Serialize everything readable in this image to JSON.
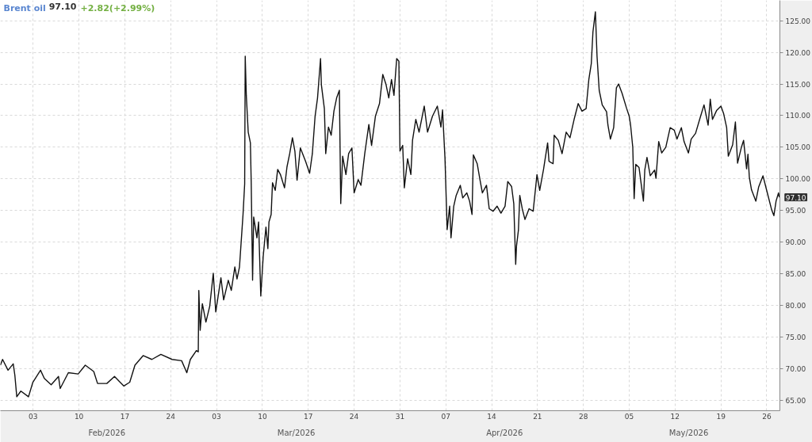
{
  "chart_data": {
    "type": "line",
    "title": "Brent oil",
    "annotations": [
      "97.10",
      "+2.82(+2.99%)",
      {
        "text": "97.10",
        "x": "2026-05-27T22:00",
        "y": 97.1
      }
    ],
    "xlim": [
      "2026-01-29T00:00",
      "2026-05-28T00:00"
    ],
    "xticks": [
      {
        "value": "2026-02-03",
        "label": "03"
      },
      {
        "value": "2026-02-10",
        "label": "10"
      },
      {
        "value": "2026-02-17",
        "label": "17"
      },
      {
        "value": "2026-02-24",
        "label": "24"
      },
      {
        "value": "2026-03-03",
        "label": "03"
      },
      {
        "value": "2026-03-10",
        "label": "10"
      },
      {
        "value": "2026-03-17",
        "label": "17"
      },
      {
        "value": "2026-03-24",
        "label": "24"
      },
      {
        "value": "2026-03-31",
        "label": "31"
      },
      {
        "value": "2026-04-07",
        "label": "07"
      },
      {
        "value": "2026-04-14",
        "label": "14"
      },
      {
        "value": "2026-04-21",
        "label": "21"
      },
      {
        "value": "2026-04-28",
        "label": "28"
      },
      {
        "value": "2026-05-05",
        "label": "05"
      },
      {
        "value": "2026-05-12",
        "label": "12"
      },
      {
        "value": "2026-05-19",
        "label": "19"
      },
      {
        "value": "2026-05-26",
        "label": "26"
      }
    ],
    "x2lim": [
      "2026-01-29T00:00",
      "2026-05-28T00:00"
    ],
    "x2ticks": [
      {
        "value": "2026-02-14T06:00",
        "label": "Feb/2026"
      },
      {
        "value": "2026-03-15T04:00",
        "label": "Mar/2026"
      },
      {
        "value": "2026-04-15T23:00",
        "label": "Apr/2026"
      },
      {
        "value": "2026-05-14T02:00",
        "label": "May/2026"
      }
    ],
    "ylim": [
      63.4,
      128.2
    ],
    "yticks": [
      {
        "value": 65,
        "label": "65.00"
      },
      {
        "value": 70,
        "label": "70.00"
      },
      {
        "value": 75,
        "label": "75.00"
      },
      {
        "value": 80,
        "label": "80.00"
      },
      {
        "value": 85,
        "label": "85.00"
      },
      {
        "value": 90,
        "label": "90.00"
      },
      {
        "value": 95,
        "label": "95.00"
      },
      {
        "value": 100,
        "label": "100.00"
      },
      {
        "value": 105,
        "label": "105.00"
      },
      {
        "value": 110,
        "label": "110.00"
      },
      {
        "value": 115,
        "label": "115.00"
      },
      {
        "value": 120,
        "label": "120.00"
      },
      {
        "value": 125,
        "label": "125.00"
      }
    ],
    "grid": true,
    "x": [
      "2026-01-29T00:00",
      "2026-01-29T08:00",
      "2026-01-30T04:00",
      "2026-01-30T23:00",
      "2026-01-31T05:00",
      "2026-01-31T12:00",
      "2026-02-01T03:00",
      "2026-02-02T07:00",
      "2026-02-02T23:00",
      "2026-02-04T03:00",
      "2026-02-04T17:00",
      "2026-02-05T18:00",
      "2026-02-06T21:00",
      "2026-02-07T03:00",
      "2026-02-08T09:00",
      "2026-02-09T21:00",
      "2026-02-10T23:00",
      "2026-02-12T06:00",
      "2026-02-12T20:00",
      "2026-02-14T06:00",
      "2026-02-15T10:00",
      "2026-02-16T20:00",
      "2026-02-17T18:00",
      "2026-02-18T13:00",
      "2026-02-19T19:00",
      "2026-02-21T03:00",
      "2026-02-22T12:00",
      "2026-02-24T05:00",
      "2026-02-25T16:00",
      "2026-02-26T11:00",
      "2026-02-27T00:00",
      "2026-02-27T22:00",
      "2026-02-28T05:00",
      "2026-02-28T07:00",
      "2026-02-28T12:00",
      "2026-02-28T20:00",
      "2026-03-01T09:00",
      "2026-03-01T23:00",
      "2026-03-02T12:00",
      "2026-03-02T21:00",
      "2026-03-03T16:00",
      "2026-03-04T02:00",
      "2026-03-04T19:00",
      "2026-03-05T06:00",
      "2026-03-05T19:00",
      "2026-03-06T03:00",
      "2026-03-06T12:00",
      "2026-03-07T01:00",
      "2026-03-07T07:00",
      "2026-03-07T09:00",
      "2026-03-07T13:00",
      "2026-03-07T20:00",
      "2026-03-08T04:00",
      "2026-03-08T07:00",
      "2026-03-08T12:00",
      "2026-03-08T16:00",
      "2026-03-09T04:00",
      "2026-03-09T10:00",
      "2026-03-09T18:00",
      "2026-03-10T03:00",
      "2026-03-10T13:00",
      "2026-03-10T20:00",
      "2026-03-11T00:00",
      "2026-03-11T08:00",
      "2026-03-11T13:00",
      "2026-03-11T23:00",
      "2026-03-12T08:00",
      "2026-03-12T18:00",
      "2026-03-13T09:00",
      "2026-03-13T18:00",
      "2026-03-14T04:00",
      "2026-03-14T14:00",
      "2026-03-14T23:00",
      "2026-03-15T07:00",
      "2026-03-15T19:00",
      "2026-03-16T14:00",
      "2026-03-17T05:00",
      "2026-03-17T15:00",
      "2026-03-18T01:00",
      "2026-03-18T10:00",
      "2026-03-18T21:00",
      "2026-03-19T00:00",
      "2026-03-19T11:00",
      "2026-03-19T16:00",
      "2026-03-20T02:00",
      "2026-03-20T12:00",
      "2026-03-20T22:00",
      "2026-03-21T08:00",
      "2026-03-21T18:00",
      "2026-03-21T23:00",
      "2026-03-22T06:00",
      "2026-03-22T18:00",
      "2026-03-23T04:00",
      "2026-03-23T16:00",
      "2026-03-24T00:00",
      "2026-03-24T15:00",
      "2026-03-25T01:00",
      "2026-03-25T15:00",
      "2026-03-26T06:00",
      "2026-03-26T16:00",
      "2026-03-27T06:00",
      "2026-03-27T21:00",
      "2026-03-28T09:00",
      "2026-03-28T21:00",
      "2026-03-29T07:00",
      "2026-03-29T17:00",
      "2026-03-30T02:00",
      "2026-03-30T12:00",
      "2026-03-30T20:00",
      "2026-03-31T00:00",
      "2026-03-31T10:00",
      "2026-03-31T16:00",
      "2026-04-01T04:00",
      "2026-04-01T16:00",
      "2026-04-01T22:00",
      "2026-04-02T10:00",
      "2026-04-02T22:00",
      "2026-04-03T17:00",
      "2026-04-04T05:00",
      "2026-04-04T23:00",
      "2026-04-05T17:00",
      "2026-04-06T06:00",
      "2026-04-06T12:00",
      "2026-04-06T21:00",
      "2026-04-07T02:00",
      "2026-04-07T05:00",
      "2026-04-07T14:00",
      "2026-04-07T19:00",
      "2026-04-08T05:00",
      "2026-04-08T14:00",
      "2026-04-09T05:00",
      "2026-04-09T14:00",
      "2026-04-10T05:00",
      "2026-04-10T15:00",
      "2026-04-11T00:00",
      "2026-04-11T05:00",
      "2026-04-11T19:00",
      "2026-04-12T05:00",
      "2026-04-12T14:00",
      "2026-04-13T05:00",
      "2026-04-13T15:00",
      "2026-04-14T05:00",
      "2026-04-14T20:00",
      "2026-04-15T10:00",
      "2026-04-16T01:00",
      "2026-04-16T11:00",
      "2026-04-17T01:00",
      "2026-04-17T09:00",
      "2026-04-17T16:00",
      "2026-04-17T19:00",
      "2026-04-18T02:00",
      "2026-04-18T07:00",
      "2026-04-18T16:00",
      "2026-04-19T02:00",
      "2026-04-19T17:00",
      "2026-04-20T08:00",
      "2026-04-20T22:00",
      "2026-04-21T08:00",
      "2026-04-21T22:00",
      "2026-04-22T13:00",
      "2026-04-22T18:00",
      "2026-04-23T09:00",
      "2026-04-23T13:00",
      "2026-04-24T04:00",
      "2026-04-24T18:00",
      "2026-04-25T09:00",
      "2026-04-25T23:00",
      "2026-04-26T14:00",
      "2026-04-27T05:00",
      "2026-04-27T19:00",
      "2026-04-28T10:00",
      "2026-04-28T20:00",
      "2026-04-29T05:00",
      "2026-04-29T11:00",
      "2026-04-29T20:00",
      "2026-04-30T02:00",
      "2026-04-30T10:00",
      "2026-04-30T21:00",
      "2026-05-01T13:00",
      "2026-05-01T18:00",
      "2026-05-02T03:00",
      "2026-05-02T15:00",
      "2026-05-03T01:00",
      "2026-05-03T09:00",
      "2026-05-03T22:00",
      "2026-05-04T14:00",
      "2026-05-05T00:00",
      "2026-05-05T05:00",
      "2026-05-05T13:00",
      "2026-05-05T18:00",
      "2026-05-06T00:00",
      "2026-05-06T12:00",
      "2026-05-07T04:00",
      "2026-05-07T09:00",
      "2026-05-07T17:00",
      "2026-05-08T05:00",
      "2026-05-08T21:00",
      "2026-05-09T02:00",
      "2026-05-09T12:00",
      "2026-05-09T23:00",
      "2026-05-10T14:00",
      "2026-05-11T06:00",
      "2026-05-11T21:00",
      "2026-05-12T07:00",
      "2026-05-12T23:00",
      "2026-05-13T09:00",
      "2026-05-14T01:00",
      "2026-05-14T11:00",
      "2026-05-15T03:00",
      "2026-05-15T18:00",
      "2026-05-16T10:00",
      "2026-05-17T01:00",
      "2026-05-17T09:00",
      "2026-05-17T17:00",
      "2026-05-18T08:00",
      "2026-05-19T00:00",
      "2026-05-19T10:00",
      "2026-05-19T21:00",
      "2026-05-20T03:00",
      "2026-05-20T19:00",
      "2026-05-21T05:00",
      "2026-05-21T13:00",
      "2026-05-22T03:00",
      "2026-05-22T11:00",
      "2026-05-22T22:00",
      "2026-05-23T03:00",
      "2026-05-23T08:00",
      "2026-05-23T16:00",
      "2026-05-24T08:00",
      "2026-05-24T18:00",
      "2026-05-25T10:00",
      "2026-05-26T02:00",
      "2026-05-26T18:00",
      "2026-05-27T02:00",
      "2026-05-27T10:00",
      "2026-05-27T19:00",
      "2026-05-27T22:00"
    ],
    "series": [
      {
        "color": "#111111",
        "values": [
          70.6,
          71.5,
          69.8,
          70.8,
          69.0,
          65.6,
          66.5,
          65.6,
          67.9,
          69.8,
          68.5,
          67.5,
          68.8,
          66.9,
          69.4,
          69.2,
          70.6,
          69.6,
          67.7,
          67.7,
          68.8,
          67.3,
          67.9,
          70.6,
          72.1,
          71.5,
          72.3,
          71.5,
          71.3,
          69.4,
          71.5,
          72.9,
          72.7,
          82.4,
          76.1,
          80.3,
          77.4,
          79.9,
          85.1,
          79.0,
          84.4,
          80.9,
          84.0,
          82.4,
          86.1,
          84.2,
          86.1,
          94.4,
          99.2,
          119.4,
          113.2,
          107.4,
          105.7,
          99.4,
          84.0,
          94.0,
          90.7,
          93.2,
          81.5,
          87.8,
          92.4,
          89.0,
          93.2,
          94.4,
          99.4,
          98.2,
          101.5,
          100.7,
          98.6,
          101.9,
          104.0,
          106.5,
          104.4,
          99.8,
          104.9,
          102.8,
          100.9,
          104.0,
          109.9,
          112.8,
          119.0,
          114.9,
          111.1,
          104.0,
          108.2,
          106.9,
          110.7,
          112.8,
          114.0,
          96.1,
          103.6,
          100.7,
          104.0,
          104.9,
          97.8,
          99.9,
          99.0,
          104.0,
          108.6,
          105.3,
          109.9,
          111.9,
          116.5,
          114.9,
          112.8,
          115.7,
          113.2,
          119.0,
          118.6,
          104.4,
          105.3,
          98.6,
          103.2,
          100.7,
          106.1,
          109.4,
          107.4,
          111.5,
          107.4,
          109.9,
          111.5,
          108.2,
          110.9,
          103.2,
          96.1,
          92.0,
          95.7,
          90.7,
          95.7,
          97.4,
          99.0,
          97.0,
          97.8,
          96.5,
          94.4,
          103.8,
          102.4,
          99.9,
          97.8,
          99.0,
          95.3,
          94.9,
          95.7,
          94.6,
          95.7,
          99.6,
          98.8,
          96.1,
          86.5,
          89.4,
          91.9,
          97.4,
          95.3,
          93.6,
          95.3,
          94.9,
          100.7,
          98.2,
          101.5,
          105.7,
          102.8,
          102.4,
          106.9,
          106.1,
          104.0,
          107.4,
          106.5,
          109.4,
          111.9,
          110.7,
          111.1,
          115.7,
          118.2,
          123.2,
          126.4,
          119.4,
          114.0,
          111.7,
          110.6,
          108.5,
          106.3,
          108.1,
          114.4,
          115.0,
          113.5,
          111.2,
          109.9,
          108.5,
          105.0,
          96.9,
          102.3,
          101.8,
          96.5,
          101.4,
          103.4,
          100.5,
          101.4,
          100.1,
          105.9,
          104.1,
          105.0,
          108.1,
          107.7,
          106.3,
          108.1,
          105.9,
          104.1,
          106.3,
          107.2,
          109.4,
          111.7,
          108.5,
          112.6,
          109.4,
          110.8,
          111.5,
          110.3,
          108.1,
          103.6,
          105.4,
          109.0,
          102.5,
          105.0,
          106.1,
          101.6,
          103.9,
          100.3,
          98.3,
          96.5,
          98.7,
          100.5,
          97.8,
          95.1,
          94.2,
          96.5,
          97.8,
          97.1
        ]
      }
    ]
  }
}
